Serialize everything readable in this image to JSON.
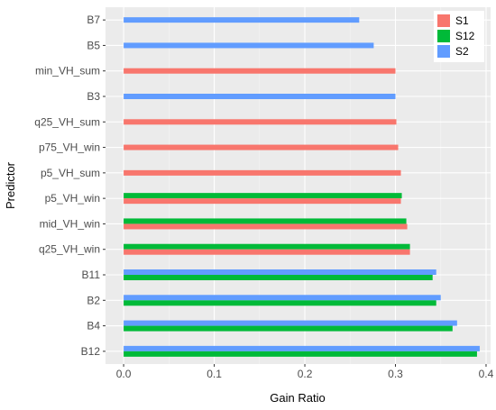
{
  "chart_data": {
    "type": "bar",
    "orientation": "horizontal",
    "xlabel": "Gain Ratio",
    "ylabel": "Predictor",
    "xlim": [
      -0.02,
      0.405
    ],
    "x_ticks": [
      0.0,
      0.1,
      0.2,
      0.3,
      0.4
    ],
    "x_tick_labels": [
      "0.0",
      "0.1",
      "0.2",
      "0.3",
      "0.4"
    ],
    "grid": true,
    "legend_position": "top-right",
    "series": [
      {
        "name": "S1",
        "color": "#F8766D"
      },
      {
        "name": "S12",
        "color": "#00BA38"
      },
      {
        "name": "S2",
        "color": "#619CFF"
      }
    ],
    "categories": [
      {
        "label": "B7",
        "bars": [
          {
            "series": "S2",
            "value": 0.26
          }
        ]
      },
      {
        "label": "B5",
        "bars": [
          {
            "series": "S2",
            "value": 0.276
          }
        ]
      },
      {
        "label": "min_VH_sum",
        "bars": [
          {
            "series": "S1",
            "value": 0.3
          }
        ]
      },
      {
        "label": "B3",
        "bars": [
          {
            "series": "S2",
            "value": 0.3
          }
        ]
      },
      {
        "label": "q25_VH_sum",
        "bars": [
          {
            "series": "S1",
            "value": 0.301
          }
        ]
      },
      {
        "label": "p75_VH_win",
        "bars": [
          {
            "series": "S1",
            "value": 0.303
          }
        ]
      },
      {
        "label": "p5_VH_sum",
        "bars": [
          {
            "series": "S1",
            "value": 0.306
          }
        ]
      },
      {
        "label": "p5_VH_win",
        "bars": [
          {
            "series": "S12",
            "value": 0.307
          },
          {
            "series": "S1",
            "value": 0.306
          }
        ]
      },
      {
        "label": "mid_VH_win",
        "bars": [
          {
            "series": "S12",
            "value": 0.312
          },
          {
            "series": "S1",
            "value": 0.313
          }
        ]
      },
      {
        "label": "q25_VH_win",
        "bars": [
          {
            "series": "S12",
            "value": 0.316
          },
          {
            "series": "S1",
            "value": 0.316
          }
        ]
      },
      {
        "label": "B11",
        "bars": [
          {
            "series": "S2",
            "value": 0.345
          },
          {
            "series": "S12",
            "value": 0.341
          }
        ]
      },
      {
        "label": "B2",
        "bars": [
          {
            "series": "S2",
            "value": 0.35
          },
          {
            "series": "S12",
            "value": 0.345
          }
        ]
      },
      {
        "label": "B4",
        "bars": [
          {
            "series": "S2",
            "value": 0.368
          },
          {
            "series": "S12",
            "value": 0.363
          }
        ]
      },
      {
        "label": "B12",
        "bars": [
          {
            "series": "S2",
            "value": 0.393
          },
          {
            "series": "S12",
            "value": 0.39
          }
        ]
      }
    ]
  }
}
